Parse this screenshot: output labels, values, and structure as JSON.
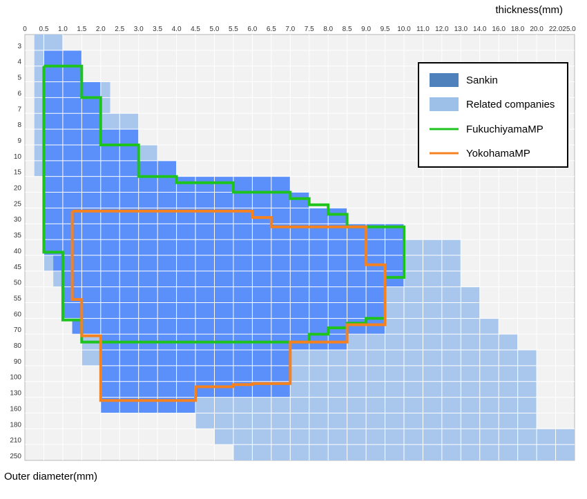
{
  "chart_data": {
    "type": "heatmap",
    "x_axis_title": "thickness(mm)",
    "y_axis_title": "Outer diameter(mm)",
    "x_ticks": [
      "0",
      "0.5",
      "1.0",
      "1.5",
      "2.0",
      "2.5",
      "3.0",
      "3.5",
      "4.0",
      "4.5",
      "5.0",
      "5.5",
      "6.0",
      "6.5",
      "7.0",
      "7.5",
      "8.0",
      "8.5",
      "9.0",
      "9.5",
      "10.0",
      "11.0",
      "12.0",
      "13.0",
      "14.0",
      "16.0",
      "18.0",
      "20.0",
      "22.0",
      "25.0"
    ],
    "y_ticks": [
      "3",
      "4",
      "5",
      "6",
      "7",
      "8",
      "9",
      "10",
      "15",
      "20",
      "25",
      "30",
      "35",
      "40",
      "45",
      "50",
      "55",
      "60",
      "70",
      "80",
      "90",
      "100",
      "130",
      "160",
      "180",
      "210",
      "250"
    ],
    "legend": [
      {
        "label": "Sankin",
        "kind": "area",
        "color": "#4f81bd"
      },
      {
        "label": "Related companies",
        "kind": "area",
        "color": "#9dc0e8"
      },
      {
        "label": "FukuchiyamaMP",
        "kind": "line",
        "color": "#1ec31e"
      },
      {
        "label": "YokohamaMP",
        "kind": "line",
        "color": "#f5821f"
      }
    ],
    "legend_position": "top-right",
    "colors": {
      "sankin_fill": "#5b8ff9",
      "related_fill": "#a9c7ec",
      "plot_background": "#f2f2f2",
      "grid": "#ffffff"
    },
    "series": [
      {
        "name": "Related companies",
        "kind": "area",
        "ranges": [
          {
            "od": [
              2,
              3
            ],
            "t": [
              0.25,
              1.0
            ]
          },
          {
            "od": [
              3,
              4
            ],
            "t": [
              0.25,
              1.0
            ]
          },
          {
            "od": [
              4,
              5
            ],
            "t": [
              0.25,
              1.5
            ]
          },
          {
            "od": [
              5,
              6
            ],
            "t": [
              0.25,
              2.25
            ]
          },
          {
            "od": [
              6,
              7
            ],
            "t": [
              0.25,
              2.25
            ]
          },
          {
            "od": [
              7,
              8
            ],
            "t": [
              0.25,
              3.0
            ]
          },
          {
            "od": [
              8,
              9
            ],
            "t": [
              0.25,
              3.0
            ]
          },
          {
            "od": [
              9,
              10
            ],
            "t": [
              0.25,
              3.5
            ]
          },
          {
            "od": [
              10,
              15
            ],
            "t": [
              0.25,
              4.0
            ]
          },
          {
            "od": [
              15,
              20
            ],
            "t": [
              0.5,
              7.0
            ]
          },
          {
            "od": [
              20,
              25
            ],
            "t": [
              0.5,
              7.5
            ]
          },
          {
            "od": [
              25,
              30
            ],
            "t": [
              0.5,
              8.5
            ]
          },
          {
            "od": [
              30,
              35
            ],
            "t": [
              0.5,
              9.5
            ]
          },
          {
            "od": [
              35,
              40
            ],
            "t": [
              0.5,
              13.0
            ]
          },
          {
            "od": [
              40,
              45
            ],
            "t": [
              0.5,
              13.0
            ]
          },
          {
            "od": [
              45,
              50
            ],
            "t": [
              0.75,
              13.0
            ]
          },
          {
            "od": [
              50,
              55
            ],
            "t": [
              1.0,
              14.0
            ]
          },
          {
            "od": [
              55,
              60
            ],
            "t": [
              1.0,
              14.0
            ]
          },
          {
            "od": [
              60,
              70
            ],
            "t": [
              1.25,
              16.0
            ]
          },
          {
            "od": [
              70,
              80
            ],
            "t": [
              1.5,
              18.0
            ]
          },
          {
            "od": [
              80,
              90
            ],
            "t": [
              1.5,
              20.0
            ]
          },
          {
            "od": [
              90,
              100
            ],
            "t": [
              2.0,
              20.0
            ]
          },
          {
            "od": [
              100,
              130
            ],
            "t": [
              2.0,
              20.0
            ]
          },
          {
            "od": [
              130,
              160
            ],
            "t": [
              3.5,
              20.0
            ]
          },
          {
            "od": [
              160,
              180
            ],
            "t": [
              4.5,
              20.0
            ]
          },
          {
            "od": [
              180,
              210
            ],
            "t": [
              5.0,
              25.0
            ]
          },
          {
            "od": [
              210,
              250
            ],
            "t": [
              5.5,
              25.0
            ]
          }
        ]
      },
      {
        "name": "Sankin",
        "kind": "area",
        "ranges": [
          {
            "od": [
              3,
              4
            ],
            "t": [
              0.5,
              1.5
            ]
          },
          {
            "od": [
              4,
              5
            ],
            "t": [
              0.5,
              1.5
            ]
          },
          {
            "od": [
              5,
              6
            ],
            "t": [
              0.5,
              2.0
            ]
          },
          {
            "od": [
              6,
              7
            ],
            "t": [
              0.5,
              2.0
            ]
          },
          {
            "od": [
              7,
              8
            ],
            "t": [
              0.5,
              2.0
            ]
          },
          {
            "od": [
              8,
              9
            ],
            "t": [
              0.5,
              3.0
            ]
          },
          {
            "od": [
              9,
              10
            ],
            "t": [
              0.5,
              3.0
            ]
          },
          {
            "od": [
              10,
              15
            ],
            "t": [
              0.5,
              4.0
            ]
          },
          {
            "od": [
              15,
              20
            ],
            "t": [
              0.5,
              7.0
            ]
          },
          {
            "od": [
              20,
              25
            ],
            "t": [
              0.5,
              7.5
            ]
          },
          {
            "od": [
              25,
              30
            ],
            "t": [
              0.5,
              8.5
            ]
          },
          {
            "od": [
              30,
              35
            ],
            "t": [
              0.5,
              10.0
            ]
          },
          {
            "od": [
              35,
              40
            ],
            "t": [
              0.5,
              10.0
            ]
          },
          {
            "od": [
              40,
              45
            ],
            "t": [
              0.75,
              10.0
            ]
          },
          {
            "od": [
              45,
              50
            ],
            "t": [
              1.0,
              10.0
            ]
          },
          {
            "od": [
              50,
              55
            ],
            "t": [
              1.0,
              9.5
            ]
          },
          {
            "od": [
              55,
              60
            ],
            "t": [
              1.0,
              9.5
            ]
          },
          {
            "od": [
              60,
              70
            ],
            "t": [
              1.25,
              9.5
            ]
          },
          {
            "od": [
              70,
              80
            ],
            "t": [
              2.0,
              8.5
            ]
          },
          {
            "od": [
              80,
              90
            ],
            "t": [
              2.0,
              7.0
            ]
          },
          {
            "od": [
              90,
              100
            ],
            "t": [
              2.0,
              7.0
            ]
          },
          {
            "od": [
              100,
              130
            ],
            "t": [
              2.0,
              7.0
            ]
          },
          {
            "od": [
              130,
              160
            ],
            "t": [
              2.0,
              4.5
            ]
          }
        ]
      },
      {
        "name": "FukuchiyamaMP",
        "kind": "line",
        "points": [
          [
            0.5,
            4
          ],
          [
            1.5,
            4
          ],
          [
            1.5,
            6
          ],
          [
            2.0,
            6
          ],
          [
            2.0,
            9
          ],
          [
            3.0,
            9
          ],
          [
            3.0,
            15
          ],
          [
            4.0,
            15
          ],
          [
            4.0,
            17
          ],
          [
            5.5,
            17
          ],
          [
            5.5,
            20
          ],
          [
            7.0,
            20
          ],
          [
            7.0,
            22
          ],
          [
            7.5,
            22
          ],
          [
            7.5,
            24
          ],
          [
            8.0,
            24
          ],
          [
            8.0,
            27
          ],
          [
            8.5,
            27
          ],
          [
            8.5,
            31
          ],
          [
            10.0,
            31
          ],
          [
            10.0,
            47
          ],
          [
            9.5,
            47
          ],
          [
            9.5,
            60
          ],
          [
            9.0,
            60
          ],
          [
            9.0,
            63
          ],
          [
            8.5,
            63
          ],
          [
            8.5,
            66
          ],
          [
            8.0,
            66
          ],
          [
            8.0,
            70
          ],
          [
            7.5,
            70
          ],
          [
            7.5,
            75
          ],
          [
            1.5,
            75
          ],
          [
            1.5,
            61
          ],
          [
            1.0,
            61
          ],
          [
            1.0,
            39
          ],
          [
            0.5,
            39
          ],
          [
            0.5,
            4
          ]
        ]
      },
      {
        "name": "YokohamaMP",
        "kind": "line",
        "points": [
          [
            1.25,
            26
          ],
          [
            6.0,
            26
          ],
          [
            6.0,
            28
          ],
          [
            6.5,
            28
          ],
          [
            6.5,
            31
          ],
          [
            7.0,
            31
          ],
          [
            7.0,
            31
          ],
          [
            8.5,
            31
          ],
          [
            9.0,
            31
          ],
          [
            9.0,
            43
          ],
          [
            9.5,
            43
          ],
          [
            9.5,
            64
          ],
          [
            8.5,
            64
          ],
          [
            8.5,
            75
          ],
          [
            7.0,
            75
          ],
          [
            7.0,
            104
          ],
          [
            6.0,
            104
          ],
          [
            6.0,
            106
          ],
          [
            5.5,
            106
          ],
          [
            5.5,
            110
          ],
          [
            4.5,
            110
          ],
          [
            4.5,
            136
          ],
          [
            2.0,
            136
          ],
          [
            2.0,
            71
          ],
          [
            1.5,
            71
          ],
          [
            1.5,
            54
          ],
          [
            1.25,
            54
          ],
          [
            1.25,
            26
          ]
        ]
      }
    ]
  }
}
